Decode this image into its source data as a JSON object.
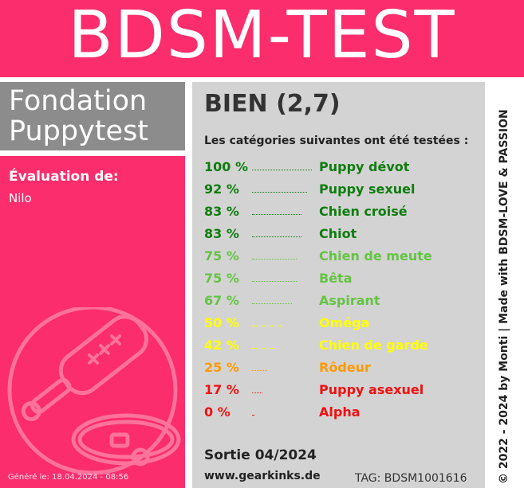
{
  "header": {
    "title": "BDSM-TEST"
  },
  "foundation": {
    "line1": "Fondation",
    "line2": "Puppytest"
  },
  "evaluation": {
    "label": "Évaluation de:",
    "name": "Nilo"
  },
  "generated": "Généré le: 18.04.2024 - 08:56",
  "result": {
    "grade": "BIEN (2,7)",
    "intro": "Les catégories suivantes ont été testées :"
  },
  "categories": [
    {
      "pct": "100 %",
      "name": "Puppy dévot",
      "value": 100,
      "color": "#0d7d0d"
    },
    {
      "pct": "92 %",
      "name": "Puppy sexuel",
      "value": 92,
      "color": "#0d7d0d"
    },
    {
      "pct": "83 %",
      "name": "Chien croisé",
      "value": 83,
      "color": "#0d7d0d"
    },
    {
      "pct": "83 %",
      "name": "Chiot",
      "value": 83,
      "color": "#0d7d0d"
    },
    {
      "pct": "75 %",
      "name": "Chien de meute",
      "value": 75,
      "color": "#63c443"
    },
    {
      "pct": "75 %",
      "name": "Bêta",
      "value": 75,
      "color": "#63c443"
    },
    {
      "pct": "67 %",
      "name": "Aspirant",
      "value": 67,
      "color": "#63c443"
    },
    {
      "pct": "50 %",
      "name": "Oméga",
      "value": 50,
      "color": "#ffff00"
    },
    {
      "pct": "42 %",
      "name": "Chien de garde",
      "value": 42,
      "color": "#ffff00"
    },
    {
      "pct": "25 %",
      "name": "Rôdeur",
      "value": 25,
      "color": "#ff9a00"
    },
    {
      "pct": "17 %",
      "name": "Puppy asexuel",
      "value": 17,
      "color": "#ee1111"
    },
    {
      "pct": "0 %",
      "name": "Alpha",
      "value": 0,
      "color": "#ee1111"
    }
  ],
  "footer": {
    "release": "Sortie 04/2024",
    "website": "www.gearkinks.de",
    "tag": "TAG: BDSM1001616"
  },
  "copyright": "© 2022 - 2024 by Monti | Made with BDSM-LOVE & PASSION",
  "colors": {
    "brand_pink": "#fb2d6c",
    "panel_gray": "#d4d3d3",
    "foundation_gray": "#8c8c8c"
  },
  "icons": {
    "watermark": "paddle-and-collar-icon"
  }
}
